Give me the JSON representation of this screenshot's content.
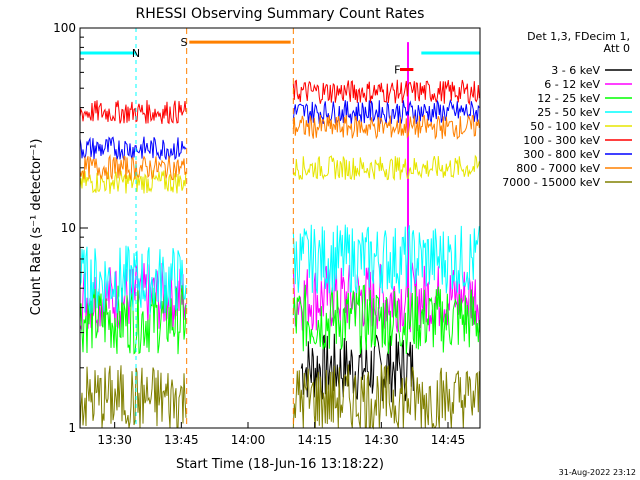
{
  "chart_data": {
    "type": "line",
    "title": "RHESSI Observing Summary Count Rates",
    "xlabel": "Start Time (18-Jun-16 13:18:22)",
    "ylabel": "Count Rate (s⁻¹ detector⁻¹)",
    "y_scale": "log",
    "ylim": [
      1,
      100
    ],
    "xlim_minutes": [
      13.37,
      14.87
    ],
    "x_ticks": [
      {
        "label": "13:30",
        "hour": 13.5
      },
      {
        "label": "13:45",
        "hour": 13.75
      },
      {
        "label": "14:00",
        "hour": 14.0
      },
      {
        "label": "14:15",
        "hour": 14.25
      },
      {
        "label": "14:30",
        "hour": 14.5
      },
      {
        "label": "14:45",
        "hour": 14.75
      }
    ],
    "y_ticks": [
      {
        "label": "1",
        "value": 1
      },
      {
        "label": "10",
        "value": 10
      },
      {
        "label": "100",
        "value": 100
      }
    ],
    "legend_header": [
      "Det 1,3, FDecim 1,",
      "Att 0"
    ],
    "legend_position": "right",
    "data_gap_hours": [
      13.77,
      14.17
    ],
    "series": [
      {
        "name": "3 - 6 keV",
        "color": "#000000",
        "segments": [
          {
            "x": [
              14.2,
              14.62
            ],
            "level": 2.0
          }
        ]
      },
      {
        "name": "6 - 12 keV",
        "color": "#ff00ff",
        "segments": [
          {
            "x": [
              13.37,
              13.77
            ],
            "level": 4.5
          },
          {
            "x": [
              14.17,
              14.87
            ],
            "level": 4.5
          }
        ],
        "peak": {
          "hour": 14.6,
          "value": 85
        }
      },
      {
        "name": "12 - 25 keV",
        "color": "#00ff00",
        "segments": [
          {
            "x": [
              13.37,
              13.77
            ],
            "level": 3.5
          },
          {
            "x": [
              14.17,
              14.87
            ],
            "level": 3.5
          }
        ]
      },
      {
        "name": "25 - 50 keV",
        "color": "#00ffff",
        "segments": [
          {
            "x": [
              13.37,
              13.77
            ],
            "level": 5.5
          },
          {
            "x": [
              14.17,
              14.87
            ],
            "level": 7.0
          }
        ]
      },
      {
        "name": "50 - 100 keV",
        "color": "#e6e600",
        "segments": [
          {
            "x": [
              13.37,
              13.77
            ],
            "level": 17
          },
          {
            "x": [
              14.17,
              14.87
            ],
            "level": 20
          }
        ]
      },
      {
        "name": "100 - 300 keV",
        "color": "#ff0000",
        "segments": [
          {
            "x": [
              13.37,
              13.77
            ],
            "level": 38
          },
          {
            "x": [
              14.17,
              14.87
            ],
            "level": 48
          }
        ]
      },
      {
        "name": "300 - 800 keV",
        "color": "#0000ff",
        "segments": [
          {
            "x": [
              13.37,
              13.77
            ],
            "level": 25
          },
          {
            "x": [
              14.17,
              14.87
            ],
            "level": 38
          }
        ]
      },
      {
        "name": "800 - 7000 keV",
        "color": "#ff8000",
        "segments": [
          {
            "x": [
              13.37,
              13.77
            ],
            "level": 20
          },
          {
            "x": [
              14.17,
              14.87
            ],
            "level": 32
          }
        ]
      },
      {
        "name": "7000 - 15000 keV",
        "color": "#808000",
        "segments": [
          {
            "x": [
              13.37,
              13.77
            ],
            "level": 1.4
          },
          {
            "x": [
              14.17,
              14.87
            ],
            "level": 1.4
          }
        ]
      }
    ],
    "annotations": [
      {
        "label": "N",
        "color": "#00ffff",
        "hour": 13.58,
        "value": 75
      },
      {
        "label": "S",
        "color": "#ff8000",
        "hour": 13.76,
        "value": 85
      },
      {
        "label": "F",
        "color": "#ff0000",
        "hour": 14.56,
        "value": 62
      }
    ],
    "markers": {
      "night_bars": [
        {
          "x": [
            13.37,
            13.58
          ],
          "value": 75
        },
        {
          "x": [
            14.65,
            14.87
          ],
          "value": 75
        }
      ],
      "saa_bar": {
        "x": [
          13.78,
          14.16
        ],
        "value": 85
      },
      "flare_bar": {
        "x": [
          14.57,
          14.62
        ],
        "value": 62
      }
    }
  },
  "footer": {
    "timestamp": "31-Aug-2022 23:12"
  }
}
